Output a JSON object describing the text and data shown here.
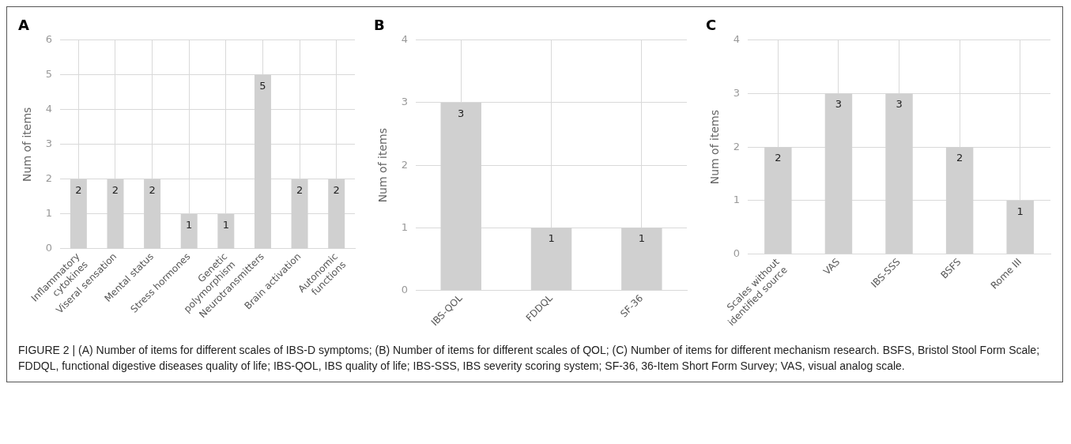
{
  "chart_data": [
    {
      "type": "bar",
      "title": "A",
      "ylabel": "Num of items",
      "categories": [
        "Inflammatory cytokines",
        "Viseral sensation",
        "Mental status",
        "Stress hormones",
        "Genetic polymorphism",
        "Neurotransmitters",
        "Brain activation",
        "Autonomic functions"
      ],
      "values": [
        2,
        2,
        2,
        1,
        1,
        5,
        2,
        2
      ],
      "color": "#d0d0d0",
      "ylim": [
        0,
        6
      ],
      "yticks": [
        0,
        1,
        2,
        3,
        4,
        5,
        6
      ],
      "grid": true,
      "data_labels": true
    },
    {
      "type": "bar",
      "title": "B",
      "ylabel": "Num of items",
      "categories": [
        "IBS-QOL",
        "FDDQL",
        "SF-36"
      ],
      "values": [
        3,
        1,
        1
      ],
      "color": "#d0d0d0",
      "ylim": [
        0,
        4
      ],
      "yticks": [
        0,
        1,
        2,
        3,
        4
      ],
      "grid": true,
      "data_labels": true
    },
    {
      "type": "bar",
      "title": "C",
      "ylabel": "Num of items",
      "categories": [
        "Scales without identified source",
        "VAS",
        "IBS-SSS",
        "BSFS",
        "Rome III"
      ],
      "values": [
        2,
        3,
        3,
        2,
        1
      ],
      "color": "#d0d0d0",
      "ylim": [
        0,
        4
      ],
      "yticks": [
        0,
        1,
        2,
        3,
        4
      ],
      "grid": true,
      "data_labels": true,
      "annotations": [
        "FIGURE 2 | (A) Number of items for different scales of IBS-D symptoms; (B) Number of items for different scales of QOL; (C) Number of items for different mechanism research. BSFS, Bristol Stool Form Scale; FDDQL, functional digestive diseases quality of life; IBS-QOL, IBS quality of life; IBS-SSS, IBS severity scoring system; SF-36, 36-Item Short Form Survey; VAS, visual analog scale."
      ]
    }
  ]
}
